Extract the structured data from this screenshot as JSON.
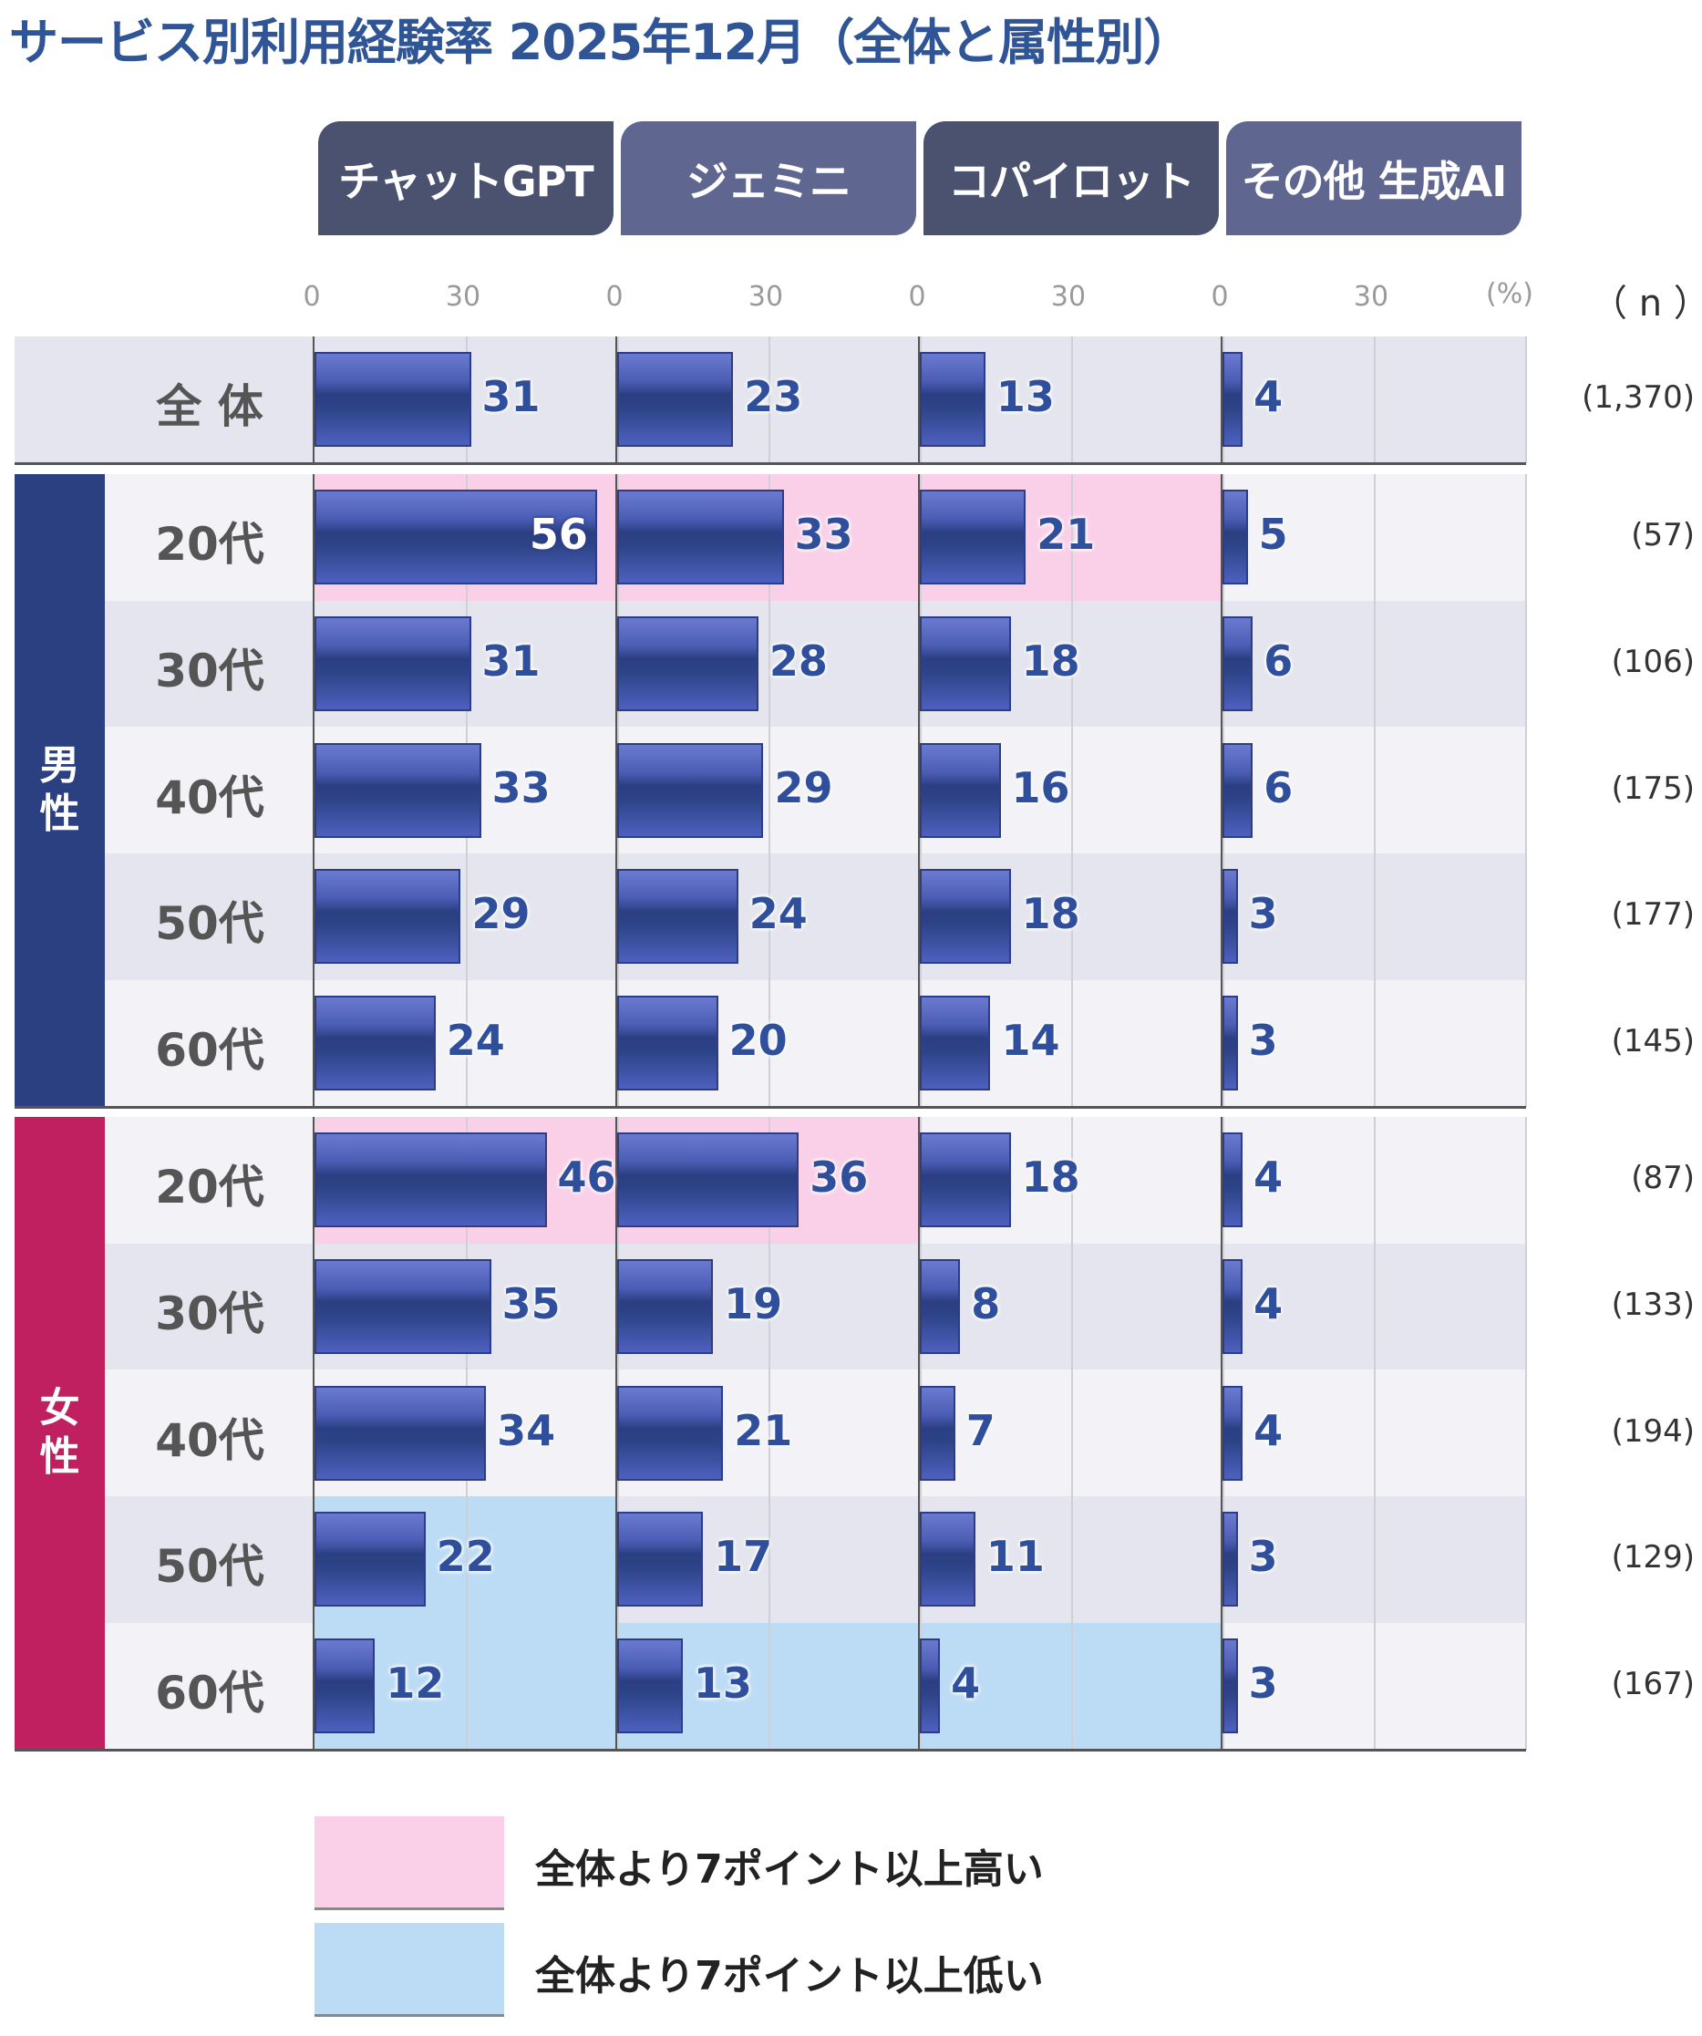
{
  "title": "サービス別利用経験率 2025年12月（全体と属性別）",
  "chart_data": {
    "type": "bar",
    "orientation": "horizontal",
    "unit_label": "(%)",
    "n_header": "（ n ）",
    "axis_ticks": [
      0,
      30
    ],
    "xlim": [
      0,
      60
    ],
    "grid": true,
    "services": [
      {
        "name": "チャットGPT",
        "tab_color": "#4a5270"
      },
      {
        "name": "ジェミニ",
        "tab_color": "#5f6690"
      },
      {
        "name": "コパイロット",
        "tab_color": "#4a5270"
      },
      {
        "name": "その他 生成AI",
        "tab_color": "#5f6690"
      }
    ],
    "groups": [
      {
        "label": "",
        "color": "",
        "rows": [
          {
            "label": "全 体",
            "n": "(1,370)",
            "values": [
              31,
              23,
              13,
              4
            ],
            "highlight": [
              null,
              null,
              null,
              null
            ]
          }
        ]
      },
      {
        "label": "男性",
        "color": "#2a4080",
        "rows": [
          {
            "label": "20代",
            "n": "(57)",
            "values": [
              56,
              33,
              21,
              5
            ],
            "highlight": [
              "high",
              "high",
              "high",
              null
            ]
          },
          {
            "label": "30代",
            "n": "(106)",
            "values": [
              31,
              28,
              18,
              6
            ],
            "highlight": [
              null,
              null,
              null,
              null
            ]
          },
          {
            "label": "40代",
            "n": "(175)",
            "values": [
              33,
              29,
              16,
              6
            ],
            "highlight": [
              null,
              null,
              null,
              null
            ]
          },
          {
            "label": "50代",
            "n": "(177)",
            "values": [
              29,
              24,
              18,
              3
            ],
            "highlight": [
              null,
              null,
              null,
              null
            ]
          },
          {
            "label": "60代",
            "n": "(145)",
            "values": [
              24,
              20,
              14,
              3
            ],
            "highlight": [
              null,
              null,
              null,
              null
            ]
          }
        ]
      },
      {
        "label": "女性",
        "color": "#c02060",
        "rows": [
          {
            "label": "20代",
            "n": "(87)",
            "values": [
              46,
              36,
              18,
              4
            ],
            "highlight": [
              "high",
              "high",
              null,
              null
            ]
          },
          {
            "label": "30代",
            "n": "(133)",
            "values": [
              35,
              19,
              8,
              4
            ],
            "highlight": [
              null,
              null,
              null,
              null
            ]
          },
          {
            "label": "40代",
            "n": "(194)",
            "values": [
              34,
              21,
              7,
              4
            ],
            "highlight": [
              null,
              null,
              null,
              null
            ]
          },
          {
            "label": "50代",
            "n": "(129)",
            "values": [
              22,
              17,
              11,
              3
            ],
            "highlight": [
              "low",
              null,
              null,
              null
            ]
          },
          {
            "label": "60代",
            "n": "(167)",
            "values": [
              12,
              13,
              4,
              3
            ],
            "highlight": [
              "low",
              "low",
              "low",
              null
            ]
          }
        ]
      }
    ],
    "legend": [
      {
        "key": "high",
        "label": "全体より7ポイント以上高い",
        "color": "#f9d0e8"
      },
      {
        "key": "low",
        "label": "全体より7ポイント以上低い",
        "color": "#bcdcf5"
      }
    ],
    "colors": {
      "bar": "#3a4fa0",
      "value_text": "#2f4f9c",
      "row_light": "#f2f2f7",
      "row_dark": "#e4e5ee"
    }
  }
}
